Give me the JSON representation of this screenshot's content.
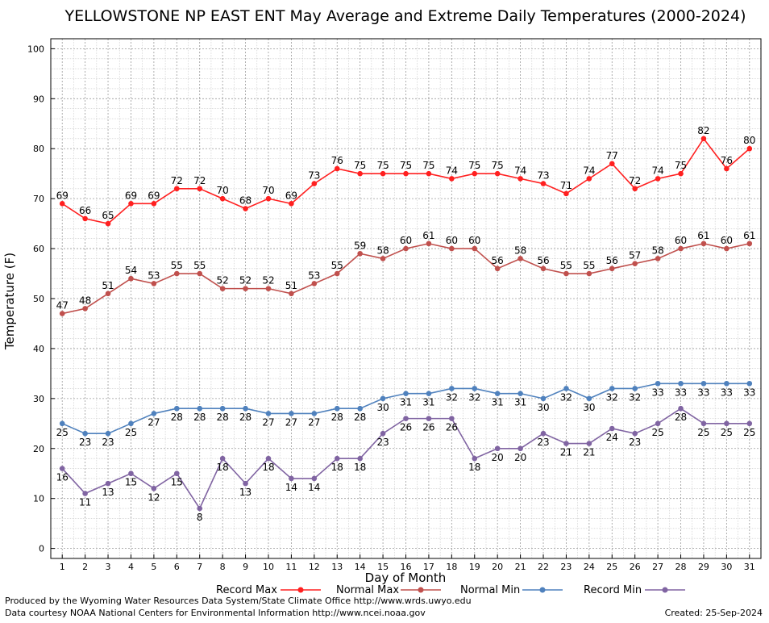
{
  "chart_data": {
    "type": "line",
    "title": "YELLOWSTONE NP EAST ENT May Average and Extreme Daily Temperatures (2000-2024)",
    "xlabel": "Day of Month",
    "ylabel": "Temperature (F)",
    "x": [
      1,
      2,
      3,
      4,
      5,
      6,
      7,
      8,
      9,
      10,
      11,
      12,
      13,
      14,
      15,
      16,
      17,
      18,
      19,
      20,
      21,
      22,
      23,
      24,
      25,
      26,
      27,
      28,
      29,
      30,
      31
    ],
    "xlim": [
      0.5,
      31.5
    ],
    "ylim": [
      -2,
      102
    ],
    "yticks": [
      0,
      10,
      20,
      30,
      40,
      50,
      60,
      70,
      80,
      90,
      100
    ],
    "grid": true,
    "legend_position": "bottom",
    "series": [
      {
        "name": "Record Max",
        "color": "#ff2020",
        "marker": "circle",
        "values": [
          69,
          66,
          65,
          69,
          69,
          72,
          72,
          70,
          68,
          70,
          69,
          73,
          76,
          75,
          75,
          75,
          75,
          74,
          75,
          75,
          74,
          73,
          71,
          74,
          77,
          72,
          74,
          75,
          82,
          76,
          80
        ],
        "label_position": "above"
      },
      {
        "name": "Normal Max",
        "color": "#c0504d",
        "marker": "circle",
        "values": [
          47,
          48,
          51,
          54,
          53,
          55,
          55,
          52,
          52,
          52,
          51,
          53,
          55,
          59,
          58,
          60,
          61,
          60,
          60,
          56,
          58,
          56,
          55,
          55,
          56,
          57,
          58,
          60,
          61,
          60,
          61
        ],
        "label_position": "above"
      },
      {
        "name": "Normal Min",
        "color": "#4f81bd",
        "marker": "circle",
        "values": [
          25,
          23,
          23,
          25,
          27,
          28,
          28,
          28,
          28,
          27,
          27,
          27,
          28,
          28,
          30,
          31,
          31,
          32,
          32,
          31,
          31,
          30,
          32,
          30,
          32,
          32,
          33,
          33,
          33,
          33,
          33
        ],
        "label_position": "below"
      },
      {
        "name": "Record Min",
        "color": "#8064a2",
        "marker": "circle",
        "values": [
          16,
          11,
          13,
          15,
          12,
          15,
          8,
          18,
          13,
          18,
          14,
          14,
          18,
          18,
          23,
          26,
          26,
          26,
          18,
          20,
          20,
          23,
          21,
          21,
          24,
          23,
          25,
          28,
          25,
          25,
          25
        ],
        "label_position": "below"
      }
    ]
  },
  "footer": {
    "produced_by": "Produced by the Wyoming Water Resources Data System/State Climate Office http://www.wrds.uwyo.edu",
    "courtesy": "Data courtesy NOAA National Centers for Environmental Information http://www.ncei.noaa.gov",
    "created": "Created:  25-Sep-2024"
  }
}
